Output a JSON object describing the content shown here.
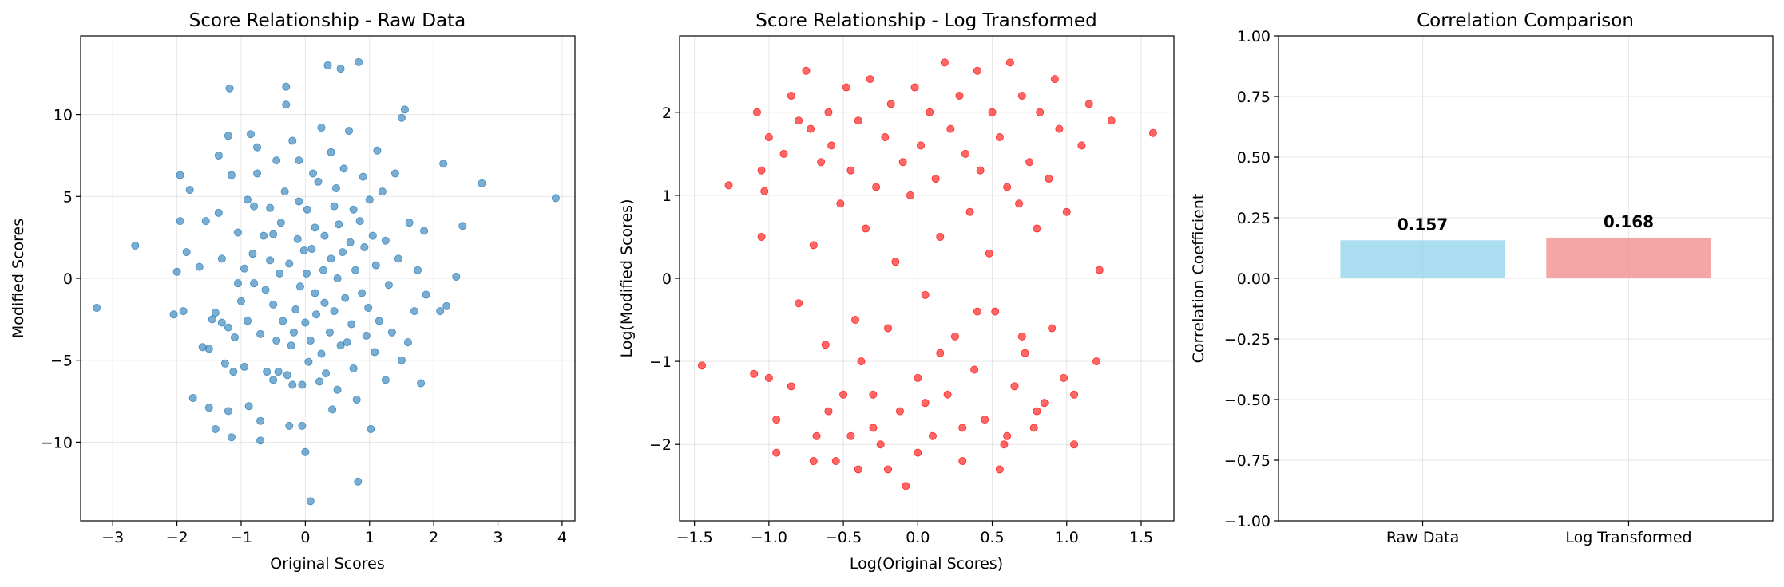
{
  "chart_data": [
    {
      "type": "scatter",
      "title": "Score Relationship - Raw Data",
      "xlabel": "Original Scores",
      "ylabel": "Modified Scores",
      "xlim": [
        -3.5,
        4.2
      ],
      "ylim": [
        -14.8,
        14.8
      ],
      "xticks": [
        -3,
        -2,
        -1,
        0,
        1,
        2,
        3,
        4
      ],
      "yticks": [
        -10,
        -5,
        0,
        5,
        10
      ],
      "grid": true,
      "color": "#1f77b4",
      "points": [
        [
          -3.25,
          -1.8
        ],
        [
          -2.65,
          2.0
        ],
        [
          -2.05,
          -2.2
        ],
        [
          -2.0,
          0.4
        ],
        [
          -1.95,
          3.5
        ],
        [
          -1.95,
          6.3
        ],
        [
          -1.9,
          -2.0
        ],
        [
          -1.85,
          1.6
        ],
        [
          -1.8,
          5.4
        ],
        [
          -1.75,
          -7.3
        ],
        [
          -1.65,
          0.7
        ],
        [
          -1.6,
          -4.2
        ],
        [
          -1.55,
          3.5
        ],
        [
          -1.5,
          -4.3
        ],
        [
          -1.5,
          -7.9
        ],
        [
          -1.45,
          -2.5
        ],
        [
          -1.4,
          -2.1
        ],
        [
          -1.4,
          -9.2
        ],
        [
          -1.35,
          4.0
        ],
        [
          -1.35,
          7.5
        ],
        [
          -1.3,
          -2.7
        ],
        [
          -1.3,
          1.2
        ],
        [
          -1.25,
          -5.2
        ],
        [
          -1.2,
          -8.1
        ],
        [
          -1.2,
          -3.0
        ],
        [
          -1.2,
          8.7
        ],
        [
          -1.18,
          11.6
        ],
        [
          -1.15,
          6.3
        ],
        [
          -1.15,
          -9.7
        ],
        [
          -1.12,
          -5.7
        ],
        [
          -1.1,
          -3.6
        ],
        [
          -1.05,
          2.8
        ],
        [
          -1.05,
          -0.3
        ],
        [
          -1.0,
          -1.4
        ],
        [
          -0.95,
          0.6
        ],
        [
          -0.95,
          -5.4
        ],
        [
          -0.9,
          4.8
        ],
        [
          -0.9,
          -2.6
        ],
        [
          -0.88,
          -7.8
        ],
        [
          -0.85,
          8.8
        ],
        [
          -0.82,
          1.5
        ],
        [
          -0.8,
          -0.3
        ],
        [
          -0.8,
          4.4
        ],
        [
          -0.75,
          6.4
        ],
        [
          -0.75,
          8.0
        ],
        [
          -0.7,
          -3.4
        ],
        [
          -0.7,
          -8.7
        ],
        [
          -0.7,
          -9.9
        ],
        [
          -0.65,
          2.6
        ],
        [
          -0.62,
          -0.7
        ],
        [
          -0.6,
          -5.7
        ],
        [
          -0.55,
          1.1
        ],
        [
          -0.55,
          4.3
        ],
        [
          -0.5,
          -1.6
        ],
        [
          -0.5,
          2.7
        ],
        [
          -0.5,
          -6.2
        ],
        [
          -0.45,
          -3.8
        ],
        [
          -0.45,
          7.2
        ],
        [
          -0.42,
          -5.7
        ],
        [
          -0.4,
          0.3
        ],
        [
          -0.38,
          3.4
        ],
        [
          -0.35,
          -2.6
        ],
        [
          -0.32,
          5.3
        ],
        [
          -0.3,
          10.6
        ],
        [
          -0.3,
          11.7
        ],
        [
          -0.28,
          -5.9
        ],
        [
          -0.25,
          0.9
        ],
        [
          -0.25,
          -9.0
        ],
        [
          -0.22,
          -4.1
        ],
        [
          -0.2,
          8.4
        ],
        [
          -0.2,
          -6.5
        ],
        [
          -0.18,
          -3.3
        ],
        [
          -0.15,
          -1.9
        ],
        [
          -0.12,
          2.4
        ],
        [
          -0.1,
          4.7
        ],
        [
          -0.1,
          7.2
        ],
        [
          -0.08,
          -0.5
        ],
        [
          -0.05,
          -6.5
        ],
        [
          -0.05,
          -9.0
        ],
        [
          -0.02,
          1.7
        ],
        [
          0.0,
          -2.7
        ],
        [
          0.0,
          -10.6
        ],
        [
          0.02,
          0.3
        ],
        [
          0.03,
          4.2
        ],
        [
          0.05,
          -5.1
        ],
        [
          0.08,
          -3.8
        ],
        [
          0.08,
          -13.6
        ],
        [
          0.1,
          1.8
        ],
        [
          0.12,
          6.4
        ],
        [
          0.15,
          -0.9
        ],
        [
          0.15,
          3.1
        ],
        [
          0.17,
          -2.2
        ],
        [
          0.2,
          5.9
        ],
        [
          0.22,
          -6.3
        ],
        [
          0.25,
          9.2
        ],
        [
          0.25,
          -4.6
        ],
        [
          0.28,
          0.5
        ],
        [
          0.3,
          2.6
        ],
        [
          0.3,
          -1.5
        ],
        [
          0.32,
          -5.8
        ],
        [
          0.35,
          13.0
        ],
        [
          0.38,
          -3.3
        ],
        [
          0.4,
          1.2
        ],
        [
          0.4,
          7.7
        ],
        [
          0.42,
          -8.0
        ],
        [
          0.45,
          4.4
        ],
        [
          0.45,
          -2.0
        ],
        [
          0.48,
          5.5
        ],
        [
          0.5,
          0.0
        ],
        [
          0.5,
          -6.8
        ],
        [
          0.52,
          3.3
        ],
        [
          0.55,
          -4.1
        ],
        [
          0.55,
          12.8
        ],
        [
          0.58,
          1.6
        ],
        [
          0.6,
          6.7
        ],
        [
          0.62,
          -1.2
        ],
        [
          0.65,
          -3.9
        ],
        [
          0.68,
          9.0
        ],
        [
          0.7,
          2.2
        ],
        [
          0.72,
          -2.8
        ],
        [
          0.75,
          4.2
        ],
        [
          0.75,
          -5.5
        ],
        [
          0.78,
          0.5
        ],
        [
          0.8,
          -7.4
        ],
        [
          0.82,
          -12.4
        ],
        [
          0.83,
          13.2
        ],
        [
          0.85,
          3.5
        ],
        [
          0.88,
          -0.9
        ],
        [
          0.9,
          6.2
        ],
        [
          0.92,
          1.9
        ],
        [
          0.95,
          -3.5
        ],
        [
          0.98,
          -1.8
        ],
        [
          1.0,
          4.8
        ],
        [
          1.02,
          -9.2
        ],
        [
          1.05,
          2.6
        ],
        [
          1.08,
          -4.5
        ],
        [
          1.1,
          0.8
        ],
        [
          1.12,
          7.8
        ],
        [
          1.15,
          -2.6
        ],
        [
          1.2,
          5.3
        ],
        [
          1.25,
          -6.2
        ],
        [
          1.25,
          2.3
        ],
        [
          1.3,
          -0.4
        ],
        [
          1.35,
          -3.3
        ],
        [
          1.4,
          6.4
        ],
        [
          1.45,
          1.2
        ],
        [
          1.5,
          9.8
        ],
        [
          1.5,
          -5.0
        ],
        [
          1.55,
          10.3
        ],
        [
          1.6,
          -3.9
        ],
        [
          1.62,
          3.4
        ],
        [
          1.7,
          -2.0
        ],
        [
          1.75,
          0.5
        ],
        [
          1.8,
          -6.4
        ],
        [
          1.85,
          2.9
        ],
        [
          1.88,
          -1.0
        ],
        [
          2.1,
          -2.0
        ],
        [
          2.15,
          7.0
        ],
        [
          2.2,
          -1.7
        ],
        [
          2.35,
          0.1
        ],
        [
          2.45,
          3.2
        ],
        [
          2.75,
          5.8
        ],
        [
          3.9,
          4.9
        ]
      ]
    },
    {
      "type": "scatter",
      "title": "Score Relationship - Log Transformed",
      "xlabel": "Log(Original Scores)",
      "ylabel": "Log(Modified Scores)",
      "xlim": [
        -1.6,
        1.72
      ],
      "ylim": [
        -2.92,
        2.92
      ],
      "xticks": [
        -1.5,
        -1.0,
        -0.5,
        0.0,
        0.5,
        1.0,
        1.5
      ],
      "yticks": [
        -2,
        -1,
        0,
        1,
        2
      ],
      "grid": true,
      "color": "#ff0000",
      "points": [
        [
          -1.45,
          -1.05
        ],
        [
          -1.27,
          1.12
        ],
        [
          -1.08,
          2.0
        ],
        [
          -1.05,
          0.5
        ],
        [
          -1.05,
          1.3
        ],
        [
          -1.03,
          1.05
        ],
        [
          -1.0,
          1.7
        ],
        [
          -1.0,
          -1.2
        ],
        [
          -0.95,
          -1.7
        ],
        [
          -0.9,
          1.5
        ],
        [
          -0.85,
          2.2
        ],
        [
          -0.8,
          1.9
        ],
        [
          -0.8,
          -0.3
        ],
        [
          -0.75,
          2.5
        ],
        [
          -0.72,
          1.8
        ],
        [
          -0.7,
          0.4
        ],
        [
          -0.68,
          -1.9
        ],
        [
          -0.65,
          1.4
        ],
        [
          -0.62,
          -0.8
        ],
        [
          -0.6,
          2.0
        ],
        [
          -0.58,
          1.6
        ],
        [
          -0.55,
          -2.2
        ],
        [
          -0.52,
          0.9
        ],
        [
          -0.5,
          -1.4
        ],
        [
          -0.48,
          2.3
        ],
        [
          -0.45,
          1.3
        ],
        [
          -0.42,
          -0.5
        ],
        [
          -0.4,
          1.9
        ],
        [
          -0.38,
          -1.0
        ],
        [
          -0.35,
          0.6
        ],
        [
          -0.32,
          2.4
        ],
        [
          -0.3,
          -1.8
        ],
        [
          -0.28,
          1.1
        ],
        [
          -0.25,
          -2.0
        ],
        [
          -0.22,
          1.7
        ],
        [
          -0.2,
          -0.6
        ],
        [
          -0.18,
          2.1
        ],
        [
          -0.15,
          0.2
        ],
        [
          -0.12,
          -1.6
        ],
        [
          -0.1,
          1.4
        ],
        [
          -0.08,
          -2.5
        ],
        [
          -0.05,
          1.0
        ],
        [
          -0.02,
          2.3
        ],
        [
          0.0,
          -1.2
        ],
        [
          0.02,
          1.6
        ],
        [
          0.05,
          -0.2
        ],
        [
          0.08,
          2.0
        ],
        [
          0.1,
          -1.9
        ],
        [
          0.12,
          1.2
        ],
        [
          0.15,
          0.5
        ],
        [
          0.18,
          2.6
        ],
        [
          0.2,
          -1.4
        ],
        [
          0.22,
          1.8
        ],
        [
          0.25,
          -0.7
        ],
        [
          0.28,
          2.2
        ],
        [
          0.3,
          -2.2
        ],
        [
          0.32,
          1.5
        ],
        [
          0.35,
          0.8
        ],
        [
          0.38,
          -1.1
        ],
        [
          0.4,
          2.5
        ],
        [
          0.42,
          1.3
        ],
        [
          0.45,
          -1.7
        ],
        [
          0.48,
          0.3
        ],
        [
          0.5,
          2.0
        ],
        [
          0.52,
          -0.4
        ],
        [
          0.55,
          1.7
        ],
        [
          0.58,
          -2.0
        ],
        [
          0.6,
          1.1
        ],
        [
          0.62,
          2.6
        ],
        [
          0.65,
          -1.3
        ],
        [
          0.68,
          0.9
        ],
        [
          0.7,
          2.2
        ],
        [
          0.72,
          -0.9
        ],
        [
          0.75,
          1.4
        ],
        [
          0.78,
          -1.8
        ],
        [
          0.8,
          0.6
        ],
        [
          0.82,
          2.0
        ],
        [
          0.85,
          -1.5
        ],
        [
          0.88,
          1.2
        ],
        [
          0.9,
          -0.6
        ],
        [
          0.92,
          2.4
        ],
        [
          0.95,
          1.8
        ],
        [
          0.98,
          -1.2
        ],
        [
          1.0,
          0.8
        ],
        [
          1.05,
          -2.0
        ],
        [
          1.1,
          1.6
        ],
        [
          1.15,
          2.1
        ],
        [
          1.2,
          -1.0
        ],
        [
          1.22,
          0.1
        ],
        [
          1.3,
          1.9
        ],
        [
          1.58,
          1.75
        ],
        [
          -1.1,
          -1.15
        ],
        [
          -0.95,
          -2.1
        ],
        [
          -0.7,
          -2.2
        ],
        [
          -0.45,
          -1.9
        ],
        [
          -0.2,
          -2.3
        ],
        [
          0.05,
          -1.5
        ],
        [
          0.3,
          -1.8
        ],
        [
          0.55,
          -2.3
        ],
        [
          0.8,
          -1.6
        ],
        [
          1.05,
          -1.4
        ],
        [
          -0.6,
          -1.6
        ],
        [
          -0.3,
          -1.4
        ],
        [
          0.0,
          -2.1
        ],
        [
          0.4,
          -0.4
        ],
        [
          0.7,
          -0.7
        ],
        [
          -0.85,
          -1.3
        ],
        [
          0.15,
          -0.9
        ],
        [
          -0.4,
          -2.3
        ],
        [
          0.6,
          -1.9
        ]
      ]
    },
    {
      "type": "bar",
      "title": "Correlation Comparison",
      "ylabel": "Correlation Coefficient",
      "categories": [
        "Raw Data",
        "Log Transformed"
      ],
      "values": [
        0.157,
        0.168
      ],
      "value_labels": [
        "0.157",
        "0.168"
      ],
      "colors": [
        "#87ceeb",
        "#f08080"
      ],
      "ylim": [
        -1.0,
        1.0
      ],
      "yticks": [
        -1.0,
        -0.75,
        -0.5,
        -0.25,
        0.0,
        0.25,
        0.5,
        0.75,
        1.0
      ],
      "ytick_labels": [
        "−1.00",
        "−0.75",
        "−0.50",
        "−0.25",
        "0.00",
        "0.25",
        "0.50",
        "0.75",
        "1.00"
      ],
      "grid": true
    }
  ]
}
